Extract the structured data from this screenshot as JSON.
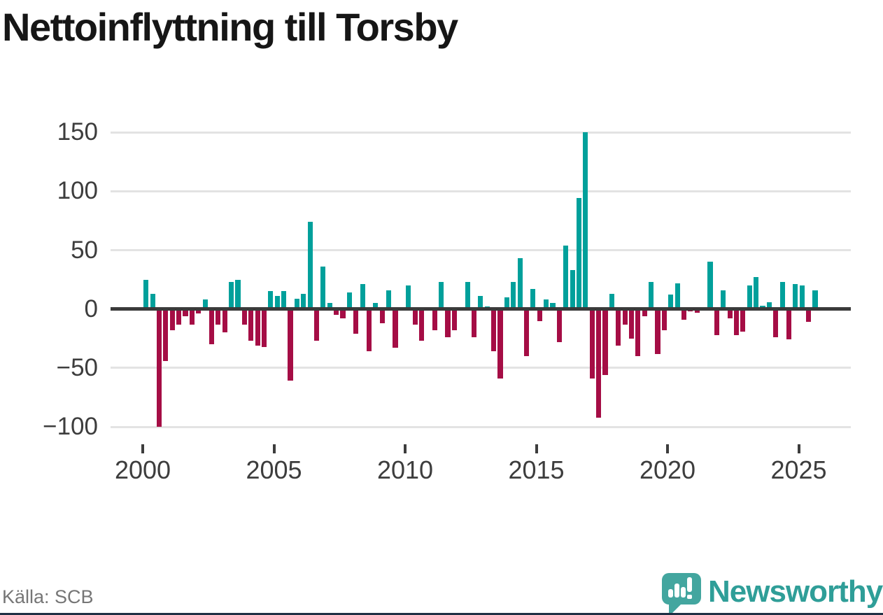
{
  "title": "Nettoinflyttning till Torsby",
  "source": "Källa: SCB",
  "branding": {
    "logo_text": "Newsworthy"
  },
  "colors": {
    "positive": "#00a09b",
    "negative": "#a50d45",
    "axis": "#3a3a3a",
    "grid": "#e3e3e3",
    "label": "#3d3d3d",
    "title": "#161616",
    "source_text": "#767676",
    "brand_icon": "#43a69f",
    "brand_text": "#2f9e98",
    "bottom_strip": "#1e2f44"
  },
  "chart_data": {
    "type": "bar",
    "title": "Nettoinflyttning till Torsby",
    "frequency": "quarterly",
    "start_period": "2000 Q1",
    "end_period": "2025 Q3",
    "xlabel": "",
    "ylabel": "",
    "ylim": [
      -110,
      160
    ],
    "grid": "horizontal",
    "legend": "none",
    "y_ticks": [
      {
        "value": 150,
        "label": "150"
      },
      {
        "value": 100,
        "label": "100"
      },
      {
        "value": 50,
        "label": "50"
      },
      {
        "value": 0,
        "label": "0"
      },
      {
        "value": -50,
        "label": "−50"
      },
      {
        "value": -100,
        "label": "−100"
      }
    ],
    "x_ticks": [
      {
        "year": 2000,
        "label": "2000"
      },
      {
        "year": 2005,
        "label": "2005"
      },
      {
        "year": 2010,
        "label": "2010"
      },
      {
        "year": 2015,
        "label": "2015"
      },
      {
        "year": 2020,
        "label": "2020"
      },
      {
        "year": 2025,
        "label": "2025"
      }
    ],
    "series": [
      {
        "name": "Nettoinflyttning",
        "values": [
          25,
          13,
          -100,
          -44,
          -18,
          -13,
          -6,
          -13,
          -4,
          8,
          -30,
          -13,
          -20,
          23,
          25,
          -13,
          -27,
          -31,
          -32,
          15,
          11,
          15,
          -61,
          9,
          13,
          74,
          -27,
          36,
          5,
          -5,
          -8,
          14,
          -21,
          21,
          -36,
          5,
          -12,
          16,
          -33,
          0,
          20,
          -13,
          -27,
          0,
          -18,
          23,
          -24,
          -18,
          0,
          23,
          -24,
          11,
          2,
          -36,
          -59,
          10,
          23,
          43,
          -40,
          17,
          -10,
          8,
          5,
          -28,
          54,
          33,
          94,
          150,
          -59,
          -92,
          -56,
          13,
          -31,
          -13,
          -25,
          -40,
          -6,
          23,
          -38,
          -18,
          12,
          22,
          -9,
          -2,
          -3,
          0,
          40,
          -22,
          16,
          -8,
          -22,
          -19,
          20,
          27,
          3,
          6,
          -24,
          23,
          -26,
          21,
          20,
          -11,
          16
        ]
      }
    ]
  }
}
